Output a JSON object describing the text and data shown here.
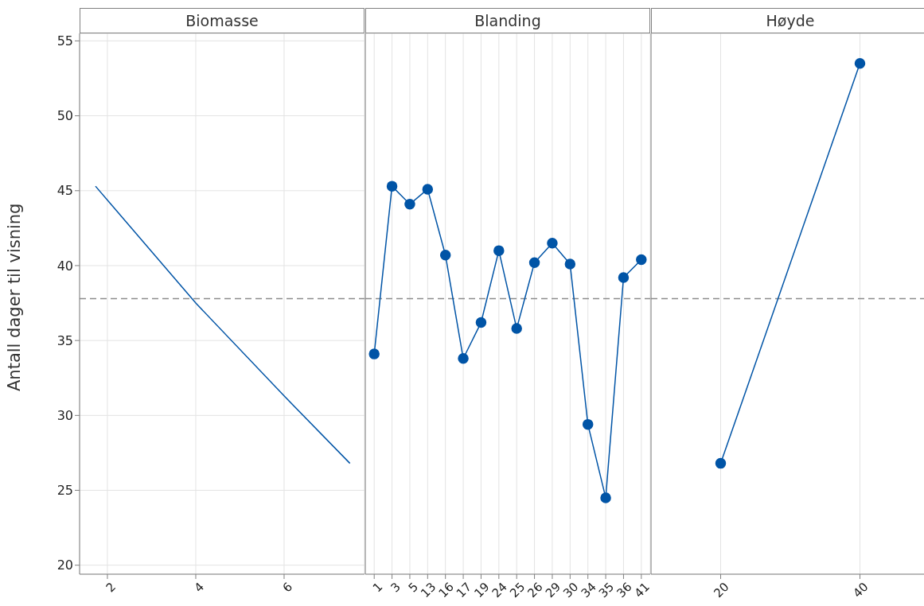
{
  "chart_data": [
    {
      "type": "line",
      "title": "Biomasse",
      "ylabel": "Antall dager til visning",
      "x": [
        1.73,
        4,
        6,
        7.49
      ],
      "values": [
        45.3,
        37.5,
        31.3,
        26.8
      ],
      "color": "#0054a6",
      "marker": "none",
      "xlim": [
        1.37,
        7.82
      ],
      "xticks": [
        2,
        4,
        6
      ],
      "ylim": [
        19.4,
        55.5
      ],
      "yticks": [
        20,
        25,
        30,
        35,
        40,
        45,
        50,
        55
      ],
      "grid": true,
      "ref_lines": [
        {
          "axis": "y",
          "value": 37.8,
          "color": "#8c8c8c",
          "line_style": "dashed"
        }
      ]
    },
    {
      "type": "line",
      "title": "Blanding",
      "categories": [
        "1",
        "3",
        "5",
        "13",
        "16",
        "17",
        "19",
        "24",
        "25",
        "26",
        "29",
        "30",
        "34",
        "35",
        "36",
        "41"
      ],
      "values": [
        34.1,
        45.3,
        44.1,
        45.1,
        40.7,
        33.8,
        36.2,
        41.0,
        35.8,
        40.2,
        41.5,
        40.1,
        29.4,
        24.5,
        39.2,
        40.4
      ],
      "color": "#0054a6",
      "marker": "circle",
      "ylim": [
        19.4,
        55.5
      ],
      "yticks": [
        20,
        25,
        30,
        35,
        40,
        45,
        50,
        55
      ],
      "grid": true,
      "tick_labels": "x",
      "ref_lines": [
        {
          "axis": "y",
          "value": 37.8,
          "color": "#8c8c8c",
          "line_style": "dashed"
        }
      ]
    },
    {
      "type": "line",
      "title": "Høyde",
      "categories": [
        "20",
        "40"
      ],
      "values": [
        26.8,
        53.5
      ],
      "color": "#0054a6",
      "marker": "circle",
      "ylim": [
        19.4,
        55.5
      ],
      "yticks": [
        20,
        25,
        30,
        35,
        40,
        45,
        50,
        55
      ],
      "grid": true,
      "tick_labels": "x",
      "ref_lines": [
        {
          "axis": "y",
          "value": 37.8,
          "color": "#8c8c8c",
          "line_style": "dashed"
        }
      ]
    }
  ]
}
